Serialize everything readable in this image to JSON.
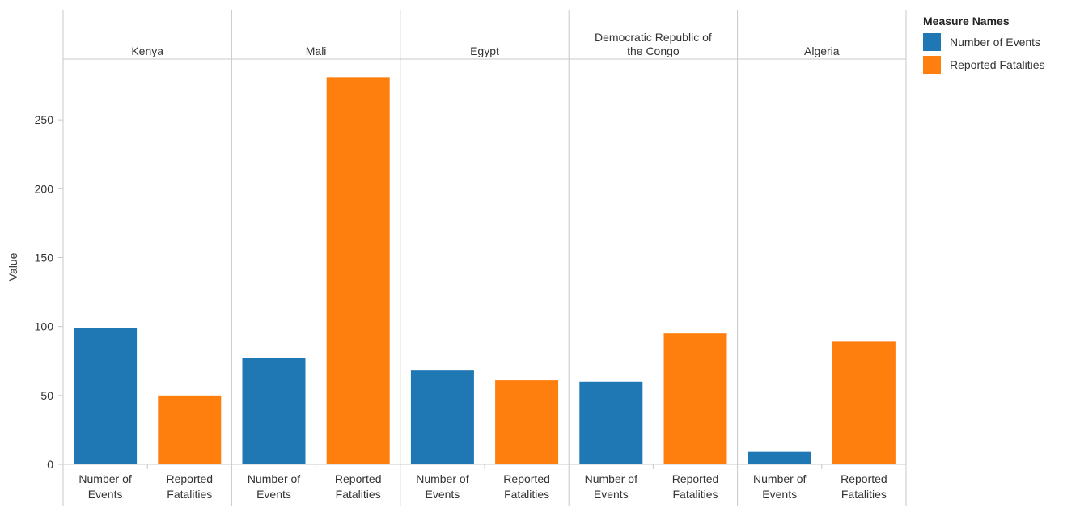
{
  "chart_data": {
    "type": "bar",
    "ylabel": "Value",
    "ylim": [
      0,
      295
    ],
    "yticks": [
      0,
      50,
      100,
      150,
      200,
      250
    ],
    "grid": false,
    "legend_position": "top-right",
    "legend": {
      "title": "Measure Names",
      "entries": [
        {
          "name": "Number of Events",
          "color": "#1f77b4"
        },
        {
          "name": "Reported Fatalities",
          "color": "#ff7f0e"
        }
      ]
    },
    "measures": [
      "Number of Events",
      "Reported Fatalities"
    ],
    "measure_tick_labels": [
      [
        "Number of",
        "Events"
      ],
      [
        "Reported",
        "Fatalities"
      ]
    ],
    "groups": [
      {
        "country": "Kenya",
        "header_lines": [
          "Kenya"
        ],
        "values": [
          99,
          50
        ]
      },
      {
        "country": "Mali",
        "header_lines": [
          "Mali"
        ],
        "values": [
          77,
          281
        ]
      },
      {
        "country": "Egypt",
        "header_lines": [
          "Egypt"
        ],
        "values": [
          68,
          61
        ]
      },
      {
        "country": "Democratic Republic of the Congo",
        "header_lines": [
          "Democratic Republic of",
          "the Congo"
        ],
        "values": [
          60,
          95
        ]
      },
      {
        "country": "Algeria",
        "header_lines": [
          "Algeria"
        ],
        "values": [
          9,
          89
        ]
      }
    ]
  }
}
